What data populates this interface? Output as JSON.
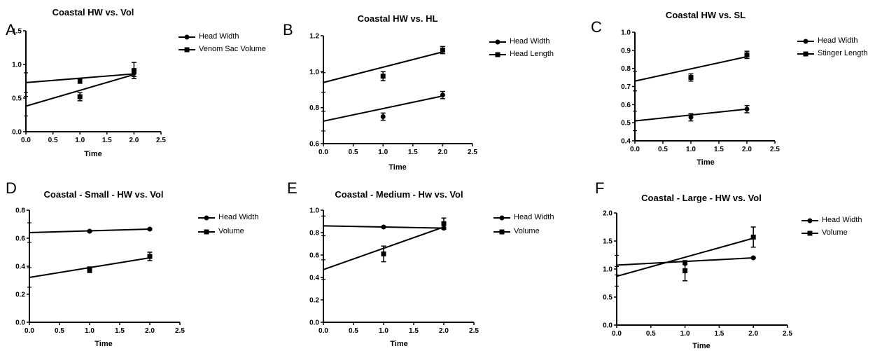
{
  "chart_data": [
    {
      "letter": "A",
      "type": "line",
      "title": "Coastal HW vs. Vol",
      "xlabel": "Time",
      "ylabel": "",
      "xlim": [
        0,
        2.5
      ],
      "ylim": [
        0,
        1.5
      ],
      "xticks": [
        "0.0",
        "0.5",
        "1.0",
        "1.5",
        "2.0",
        "2.5"
      ],
      "yticks": [
        "0.0",
        "0.5",
        "1.0",
        "1.5"
      ],
      "series": [
        {
          "name": "Head Width",
          "marker": "circle",
          "points": [
            {
              "x": 1,
              "y": 0.75,
              "err": 0.03
            },
            {
              "x": 2,
              "y": 0.87,
              "err": 0.05
            }
          ],
          "fit": [
            {
              "x": 0,
              "y": 0.73
            },
            {
              "x": 2,
              "y": 0.86
            }
          ]
        },
        {
          "name": "Venom Sac Volume",
          "marker": "square",
          "points": [
            {
              "x": 1,
              "y": 0.52,
              "err": 0.06
            },
            {
              "x": 2,
              "y": 0.91,
              "err": 0.12
            }
          ],
          "fit": [
            {
              "x": 0,
              "y": 0.38
            },
            {
              "x": 2,
              "y": 0.85
            }
          ]
        }
      ]
    },
    {
      "letter": "B",
      "type": "line",
      "title": "Coastal HW vs. HL",
      "xlabel": "Time",
      "ylabel": "",
      "xlim": [
        0,
        2.5
      ],
      "ylim": [
        0.6,
        1.2
      ],
      "xticks": [
        "0.0",
        "0.5",
        "1.0",
        "1.5",
        "2.0",
        "2.5"
      ],
      "yticks": [
        "0.6",
        "0.8",
        "1.0",
        "1.2"
      ],
      "series": [
        {
          "name": "Head Width",
          "marker": "circle",
          "points": [
            {
              "x": 1,
              "y": 0.75,
              "err": 0.02
            },
            {
              "x": 2,
              "y": 0.87,
              "err": 0.02
            }
          ],
          "fit": [
            {
              "x": 0,
              "y": 0.725
            },
            {
              "x": 2,
              "y": 0.865
            }
          ]
        },
        {
          "name": "Head Length",
          "marker": "square",
          "points": [
            {
              "x": 1,
              "y": 0.975,
              "err": 0.025
            },
            {
              "x": 2,
              "y": 1.12,
              "err": 0.02
            }
          ],
          "fit": [
            {
              "x": 0,
              "y": 0.94
            },
            {
              "x": 2,
              "y": 1.11
            }
          ]
        }
      ]
    },
    {
      "letter": "C",
      "type": "line",
      "title": "Coastal HW vs. SL",
      "xlabel": "Time",
      "ylabel": "",
      "xlim": [
        0,
        2.5
      ],
      "ylim": [
        0.4,
        1.0
      ],
      "xticks": [
        "0.0",
        "0.5",
        "1.0",
        "1.5",
        "2.0",
        "2.5"
      ],
      "yticks": [
        "0.4",
        "0.5",
        "0.6",
        "0.7",
        "0.8",
        "0.9",
        "1.0"
      ],
      "series": [
        {
          "name": "Head Width",
          "marker": "circle",
          "points": [
            {
              "x": 1,
              "y": 0.53,
              "err": 0.02
            },
            {
              "x": 2,
              "y": 0.575,
              "err": 0.02
            }
          ],
          "fit": [
            {
              "x": 0,
              "y": 0.51
            },
            {
              "x": 2,
              "y": 0.575
            }
          ]
        },
        {
          "name": "Stinger Length",
          "marker": "square",
          "points": [
            {
              "x": 1,
              "y": 0.75,
              "err": 0.02
            },
            {
              "x": 2,
              "y": 0.875,
              "err": 0.02
            }
          ],
          "fit": [
            {
              "x": 0,
              "y": 0.73
            },
            {
              "x": 2,
              "y": 0.865
            }
          ]
        }
      ]
    },
    {
      "letter": "D",
      "type": "line",
      "title": "Coastal - Small - HW vs. Vol",
      "xlabel": "Time",
      "ylabel": "",
      "xlim": [
        0,
        2.5
      ],
      "ylim": [
        0,
        0.8
      ],
      "xticks": [
        "0.0",
        "0.5",
        "1.0",
        "1.5",
        "2.0",
        "2.5"
      ],
      "yticks": [
        "0.0",
        "0.2",
        "0.4",
        "0.6",
        "0.8"
      ],
      "series": [
        {
          "name": "Head Width",
          "marker": "circle",
          "points": [
            {
              "x": 1,
              "y": 0.65,
              "err": 0.005
            },
            {
              "x": 2,
              "y": 0.665,
              "err": 0.005
            }
          ],
          "fit": [
            {
              "x": 0,
              "y": 0.64
            },
            {
              "x": 2,
              "y": 0.665
            }
          ]
        },
        {
          "name": "Volume",
          "marker": "square",
          "points": [
            {
              "x": 1,
              "y": 0.375,
              "err": 0.02
            },
            {
              "x": 2,
              "y": 0.47,
              "err": 0.03
            }
          ],
          "fit": [
            {
              "x": 0,
              "y": 0.32
            },
            {
              "x": 2,
              "y": 0.46
            }
          ]
        }
      ]
    },
    {
      "letter": "E",
      "type": "line",
      "title": "Coastal - Medium - Hw vs. Vol",
      "xlabel": "Time",
      "ylabel": "",
      "xlim": [
        0,
        2.5
      ],
      "ylim": [
        0,
        1.0
      ],
      "xticks": [
        "0.0",
        "0.5",
        "1.0",
        "1.5",
        "2.0",
        "2.5"
      ],
      "yticks": [
        "0.0",
        "0.2",
        "0.4",
        "0.6",
        "0.8",
        "1.0"
      ],
      "series": [
        {
          "name": "Head Width",
          "marker": "circle",
          "points": [
            {
              "x": 1,
              "y": 0.85,
              "err": 0.005
            },
            {
              "x": 2,
              "y": 0.84,
              "err": 0.005
            }
          ],
          "fit": [
            {
              "x": 0,
              "y": 0.86
            },
            {
              "x": 2,
              "y": 0.84
            }
          ]
        },
        {
          "name": "Volume",
          "marker": "square",
          "points": [
            {
              "x": 1,
              "y": 0.61,
              "err": 0.07
            },
            {
              "x": 2,
              "y": 0.88,
              "err": 0.05
            }
          ],
          "fit": [
            {
              "x": 0,
              "y": 0.47
            },
            {
              "x": 2,
              "y": 0.85
            }
          ]
        }
      ]
    },
    {
      "letter": "F",
      "type": "line",
      "title": "Coastal - Large - HW vs. Vol",
      "xlabel": "Time",
      "ylabel": "",
      "xlim": [
        0,
        2.5
      ],
      "ylim": [
        0,
        2.0
      ],
      "xticks": [
        "0.0",
        "0.5",
        "1.0",
        "1.5",
        "2.0",
        "2.5"
      ],
      "yticks": [
        "0.0",
        "0.5",
        "1.0",
        "1.5",
        "2.0"
      ],
      "series": [
        {
          "name": "Head Width",
          "marker": "circle",
          "points": [
            {
              "x": 1,
              "y": 1.1,
              "err": 0.02
            },
            {
              "x": 2,
              "y": 1.2,
              "err": 0.01
            }
          ],
          "fit": [
            {
              "x": 0,
              "y": 1.07
            },
            {
              "x": 2,
              "y": 1.2
            }
          ]
        },
        {
          "name": "Volume",
          "marker": "square",
          "points": [
            {
              "x": 1,
              "y": 0.97,
              "err": 0.18
            },
            {
              "x": 2,
              "y": 1.57,
              "err": 0.18
            }
          ],
          "fit": [
            {
              "x": 0,
              "y": 0.87
            },
            {
              "x": 2,
              "y": 1.55
            }
          ]
        }
      ]
    }
  ]
}
